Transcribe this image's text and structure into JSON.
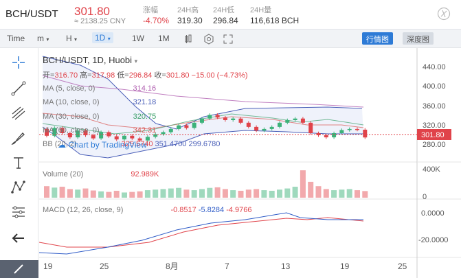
{
  "header": {
    "symbol": "BCH/USDT",
    "price": "301.80",
    "cny": "≈ 2138.25 CNY",
    "stats": [
      {
        "label": "涨幅",
        "value": "-4.70%"
      },
      {
        "label": "24H高",
        "value": "319.30"
      },
      {
        "label": "24H低",
        "value": "296.84"
      },
      {
        "label": "24H量",
        "value": "116,618 BCH"
      }
    ]
  },
  "toolbar": {
    "time_label": "Time",
    "m_label": "m",
    "h_label": "H",
    "d_label": "1D",
    "w_label": "1W",
    "mo_label": "1M",
    "market_btn": "行情图",
    "depth_btn": "深度图"
  },
  "chart": {
    "title": "BCH/USDT, 1D, Huobi",
    "ohlc": {
      "open_label": "开=",
      "open": "316.70",
      "high_label": "高=",
      "high": "317.98",
      "low_label": "低=",
      "low": "296.84",
      "close_label": "收=",
      "close": "301.80",
      "change": "−15.00 (−4.73%)"
    },
    "ma": [
      {
        "label": "MA (5, close, 0)",
        "value": "314.16",
        "color": "#b05fb0"
      },
      {
        "label": "MA (10, close, 0)",
        "value": "321.18",
        "color": "#4a5fb8"
      },
      {
        "label": "MA (30, close, 0)",
        "value": "320.75",
        "color": "#3ca06a"
      },
      {
        "label": "MA (60, close, 0)",
        "value": "342.31",
        "color": "#d9534f"
      }
    ],
    "bb": {
      "label": "BB (20, 2)",
      "v1": "325.5740",
      "v2": "351.4700",
      "v3": "299.6780"
    },
    "watermark": "Chart by TradingView",
    "price_axis": [
      "440.00",
      "400.00",
      "360.00",
      "320.00",
      "280.00"
    ],
    "last_price": "301.80",
    "volume": {
      "label": "Volume (20)",
      "value": "92.989K",
      "axis_top": "400K",
      "axis_zero": "0"
    },
    "macd": {
      "label": "MACD (12, 26, close, 9)",
      "v1": "-0.8517",
      "v2": "-5.8284",
      "v3": "-4.9766",
      "axis": [
        "0.0000",
        "-20.0000"
      ]
    },
    "x_axis": [
      "19",
      "25",
      "8月",
      "7",
      "13",
      "19",
      "25"
    ]
  },
  "chart_data": {
    "type": "candlestick",
    "candles": [
      {
        "o": 318,
        "c": 305
      },
      {
        "o": 305,
        "c": 320
      },
      {
        "o": 320,
        "c": 310
      },
      {
        "o": 310,
        "c": 302
      },
      {
        "o": 302,
        "c": 315
      },
      {
        "o": 315,
        "c": 306
      },
      {
        "o": 306,
        "c": 300
      },
      {
        "o": 300,
        "c": 312
      },
      {
        "o": 312,
        "c": 304
      },
      {
        "o": 304,
        "c": 298
      },
      {
        "o": 298,
        "c": 305
      },
      {
        "o": 305,
        "c": 300
      },
      {
        "o": 300,
        "c": 296
      },
      {
        "o": 296,
        "c": 303
      },
      {
        "o": 303,
        "c": 308
      },
      {
        "o": 308,
        "c": 312
      },
      {
        "o": 312,
        "c": 318
      },
      {
        "o": 318,
        "c": 325
      },
      {
        "o": 325,
        "c": 320
      },
      {
        "o": 320,
        "c": 330
      },
      {
        "o": 330,
        "c": 338
      },
      {
        "o": 338,
        "c": 345
      },
      {
        "o": 345,
        "c": 340
      },
      {
        "o": 340,
        "c": 335
      },
      {
        "o": 335,
        "c": 338
      },
      {
        "o": 338,
        "c": 330
      },
      {
        "o": 330,
        "c": 322
      },
      {
        "o": 322,
        "c": 315
      },
      {
        "o": 315,
        "c": 318
      },
      {
        "o": 318,
        "c": 322
      },
      {
        "o": 322,
        "c": 330
      },
      {
        "o": 330,
        "c": 335
      },
      {
        "o": 335,
        "c": 338
      },
      {
        "o": 338,
        "c": 330
      },
      {
        "o": 330,
        "c": 310
      },
      {
        "o": 310,
        "c": 306
      },
      {
        "o": 306,
        "c": 302
      },
      {
        "o": 302,
        "c": 310
      },
      {
        "o": 310,
        "c": 316
      },
      {
        "o": 316,
        "c": 318
      },
      {
        "o": 318,
        "c": 316.7
      },
      {
        "o": 316.7,
        "c": 301.8
      }
    ],
    "volume": [
      40,
      35,
      38,
      30,
      28,
      32,
      25,
      22,
      20,
      24,
      18,
      20,
      22,
      26,
      28,
      30,
      32,
      34,
      28,
      26,
      30,
      34,
      36,
      30,
      26,
      24,
      28,
      30,
      26,
      24,
      28,
      32,
      38,
      95,
      55,
      40,
      30,
      26,
      28,
      30,
      26,
      23
    ],
    "ylim": [
      260,
      460
    ]
  }
}
